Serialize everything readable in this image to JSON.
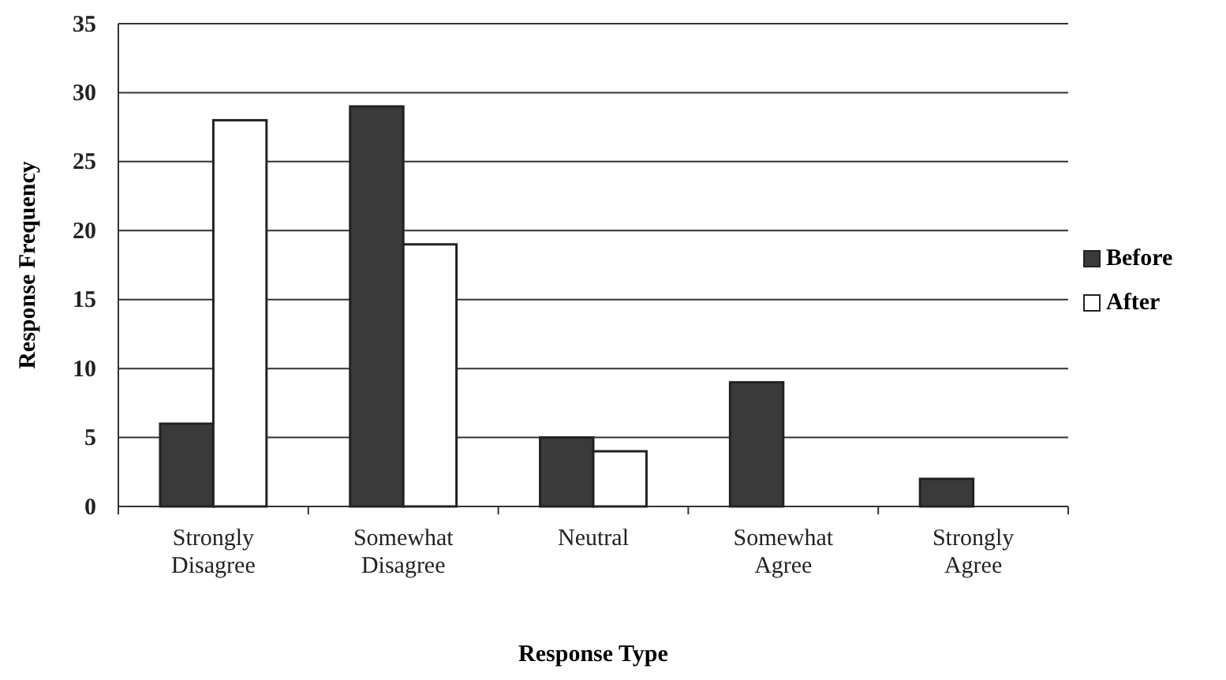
{
  "chart_data": {
    "type": "bar",
    "xlabel": "Response Type",
    "ylabel": "Response Frequency",
    "categories": [
      "Strongly Disagree",
      "Somewhat Disagree",
      "Neutral",
      "Somewhat Agree",
      "Strongly Agree"
    ],
    "series": [
      {
        "name": "Before",
        "color": "#3a3a3a",
        "values": [
          6,
          29,
          5,
          9,
          2
        ]
      },
      {
        "name": "After",
        "color": "#ffffff",
        "values": [
          28,
          19,
          4,
          0,
          0
        ]
      }
    ],
    "ylim": [
      0,
      35
    ],
    "yticks": [
      0,
      5,
      10,
      15,
      20,
      25,
      30,
      35
    ],
    "grid": "y",
    "legend": "right"
  }
}
